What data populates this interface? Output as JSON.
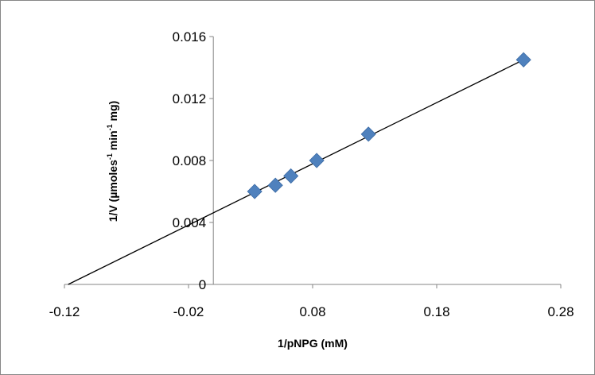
{
  "chart_data": {
    "type": "scatter",
    "title": "",
    "xlabel": "1/pNPG (mM)",
    "ylabel_main": "1/V  (µmoles",
    "ylabel_sup1": "-1",
    "ylabel_mid": " min",
    "ylabel_sup2": "-1",
    "ylabel_end": " mg)",
    "xlim": [
      -0.12,
      0.28
    ],
    "ylim": [
      0,
      0.016
    ],
    "x_ticks": [
      -0.12,
      -0.02,
      0.08,
      0.18,
      0.28
    ],
    "x_tick_labels": [
      "-0.12",
      "-0.02",
      "0.08",
      "0.18",
      "0.28"
    ],
    "y_ticks": [
      0,
      0.004,
      0.008,
      0.012,
      0.016
    ],
    "y_tick_labels": [
      "0",
      "0.004",
      "0.008",
      "0.012",
      "0.016"
    ],
    "grid": false,
    "legend": "none",
    "marker_color": "#4f81bd",
    "line_color": "#000000",
    "series": [
      {
        "marker": "diamond",
        "x": [
          0.0333,
          0.05,
          0.0625,
          0.0833,
          0.125,
          0.25
        ],
        "y": [
          0.006,
          0.0064,
          0.007,
          0.008,
          0.0097,
          0.0145
        ]
      }
    ],
    "trendline": {
      "type": "linear",
      "x": [
        -0.117,
        0.25
      ],
      "y": [
        0,
        0.0145
      ]
    }
  }
}
